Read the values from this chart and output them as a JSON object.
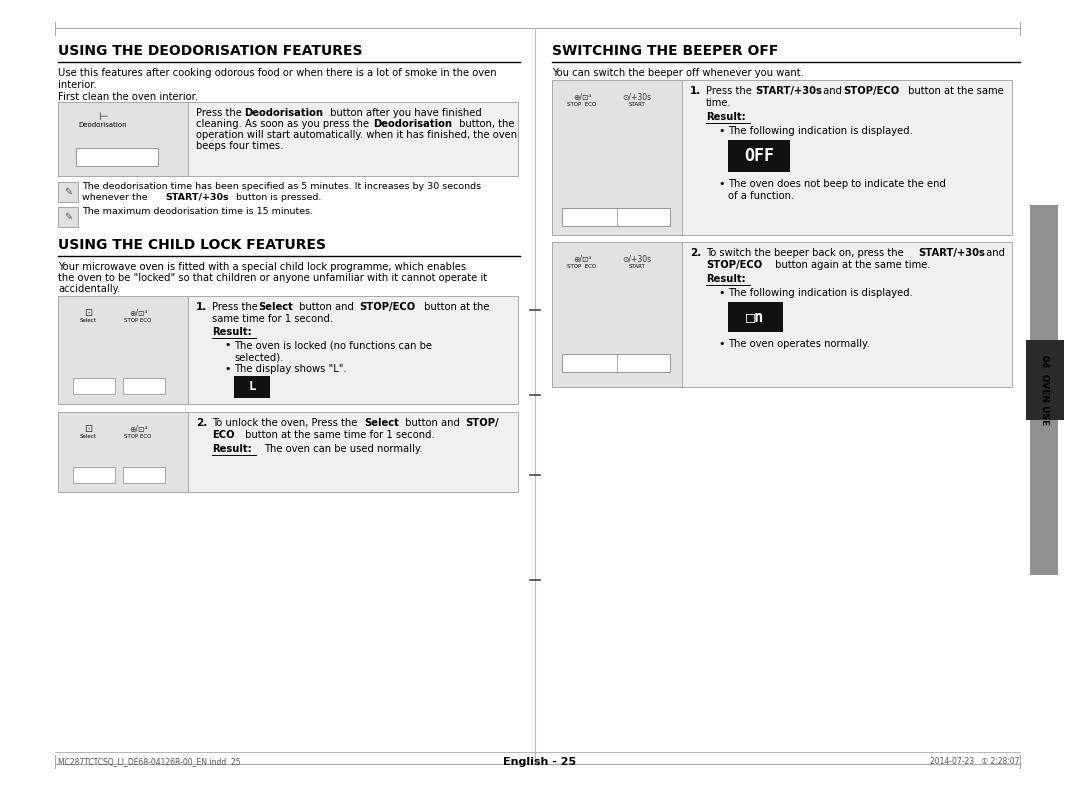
{
  "page_bg": "#ffffff",
  "pw": 1080,
  "ph": 792,
  "section1_title": "USING THE DEODORISATION FEATURES",
  "section2_title": "USING THE CHILD LOCK FEATURES",
  "section3_title": "SWITCHING THE BEEPER OFF",
  "footer_center": "English - 25",
  "footer_left": "MC287TCTCSQ_LI_DE68-04126R-00_EN.indd  25",
  "footer_right": "2014-07-23   ① 2:28:07",
  "sidebar_text": "04  OVEN USE",
  "sidebar_gray": "#909090",
  "sidebar_dark": "#2a2a2a",
  "display_bg": "#111111",
  "display_fg": "#ffffff"
}
